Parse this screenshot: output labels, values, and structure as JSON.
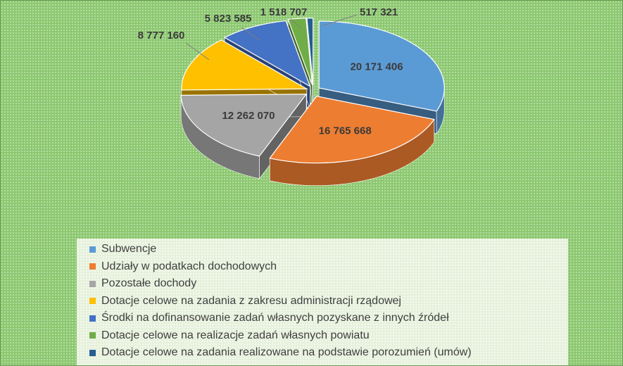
{
  "chart_data": {
    "type": "pie",
    "style": "3d-exploded",
    "categories": [
      "Subwencje",
      "Udziały w podatkach dochodowych",
      "Pozostałe dochody",
      "Dotacje celowe na zadania z zakresu administracji rządowej",
      "Środki na dofinansowanie zadań własnych pozyskane z innych źródeł",
      "Dotacje celowe na realizacje zadań własnych powiatu",
      "Dotacje celowe na zadania realizowane na podstawie porozumień (umów)"
    ],
    "values": [
      20171406,
      16765668,
      12262070,
      8777160,
      5823585,
      1518707,
      517321
    ],
    "value_labels": [
      "20 171 406",
      "16 765 668",
      "12 262 070",
      "8 777 160",
      "5 823 585",
      "1 518 707",
      "517 321"
    ],
    "colors": [
      "#5b9bd5",
      "#ed7d31",
      "#a5a5a5",
      "#ffc000",
      "#4472c4",
      "#70ad47",
      "#255e91"
    ],
    "legend_position": "bottom"
  }
}
